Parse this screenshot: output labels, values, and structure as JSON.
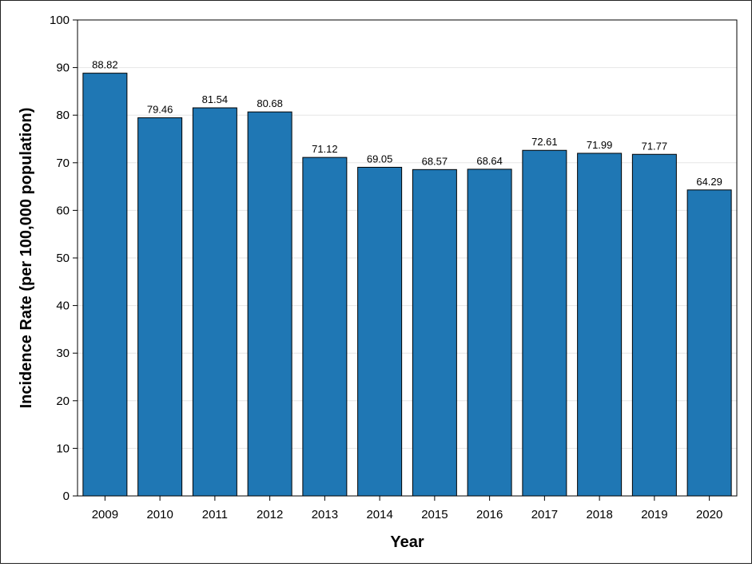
{
  "chart_data": {
    "type": "bar",
    "categories": [
      "2009",
      "2010",
      "2011",
      "2012",
      "2013",
      "2014",
      "2015",
      "2016",
      "2017",
      "2018",
      "2019",
      "2020"
    ],
    "values": [
      88.82,
      79.46,
      81.54,
      80.68,
      71.12,
      69.05,
      68.57,
      68.64,
      72.61,
      71.99,
      71.77,
      64.29
    ],
    "value_labels": [
      "88.82",
      "79.46",
      "81.54",
      "80.68",
      "71.12",
      "69.05",
      "68.57",
      "68.64",
      "72.61",
      "71.99",
      "71.77",
      "64.29"
    ],
    "title": "",
    "xlabel": "Year",
    "ylabel": "Incidence Rate (per 100,000 population)",
    "ylim": [
      0,
      100
    ],
    "yticks": [
      "0",
      "10",
      "20",
      "30",
      "40",
      "50",
      "60",
      "70",
      "80",
      "90",
      "100"
    ],
    "grid": true,
    "legend": "none",
    "bar_color": "#1f77b4",
    "bar_edge_color": "#000000"
  }
}
